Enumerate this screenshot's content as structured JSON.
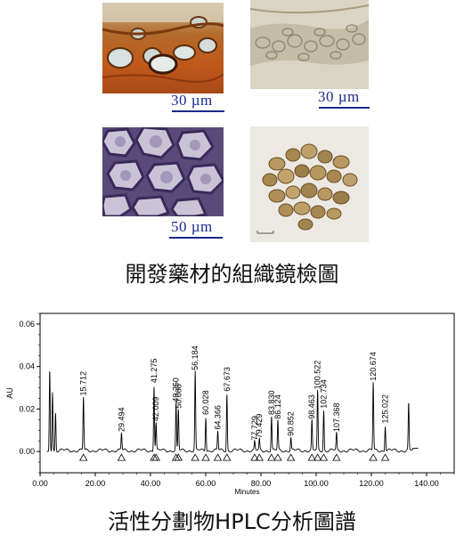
{
  "micrographs": [
    {
      "name": "micrograph-cortex-1",
      "scale": "30 µm"
    },
    {
      "name": "micrograph-cortex-2",
      "scale": "30 µm"
    },
    {
      "name": "micrograph-cells",
      "scale": "50 µm"
    },
    {
      "name": "photo-seeds",
      "scale": ""
    }
  ],
  "caption_top": "開發藥材的組織鏡檢圖",
  "caption_bottom": "活性分劃物HPLC分析圖譜",
  "chart_data": {
    "type": "line",
    "xlabel": "Minutes",
    "ylabel": "AU",
    "xlim": [
      0,
      150
    ],
    "ylim": [
      -0.01,
      0.065
    ],
    "xticks": [
      "0.00",
      "20.00",
      "40.00",
      "60.00",
      "80.00",
      "100.00",
      "120.00",
      "140.00"
    ],
    "xtick_values": [
      0,
      20,
      40,
      60,
      80,
      100,
      120,
      140
    ],
    "yticks": [
      "0.00",
      "0.02",
      "0.04",
      "0.06"
    ],
    "ytick_values": [
      0,
      0.02,
      0.04,
      0.06
    ],
    "series_color": "#000000",
    "peaks": [
      {
        "label": "15.712",
        "x": 15.712,
        "h": 0.025
      },
      {
        "label": "29.494",
        "x": 29.494,
        "h": 0.008
      },
      {
        "label": "41.275",
        "x": 41.275,
        "h": 0.031
      },
      {
        "label": "42.009",
        "x": 42.009,
        "h": 0.013
      },
      {
        "label": "49.250",
        "x": 49.25,
        "h": 0.022
      },
      {
        "label": "50.088",
        "x": 50.088,
        "h": 0.019
      },
      {
        "label": "56.184",
        "x": 56.184,
        "h": 0.037
      },
      {
        "label": "60.028",
        "x": 60.028,
        "h": 0.016
      },
      {
        "label": "64.366",
        "x": 64.366,
        "h": 0.009
      },
      {
        "label": "67.673",
        "x": 67.673,
        "h": 0.027
      },
      {
        "label": "77.729",
        "x": 77.729,
        "h": 0.004
      },
      {
        "label": "79.429",
        "x": 79.429,
        "h": 0.005
      },
      {
        "label": "83.830",
        "x": 83.83,
        "h": 0.016
      },
      {
        "label": "86.124",
        "x": 86.124,
        "h": 0.014
      },
      {
        "label": "90.852",
        "x": 90.852,
        "h": 0.006
      },
      {
        "label": "98.463",
        "x": 98.463,
        "h": 0.014
      },
      {
        "label": "100.522",
        "x": 100.522,
        "h": 0.028
      },
      {
        "label": "102.734",
        "x": 102.734,
        "h": 0.019
      },
      {
        "label": "107.368",
        "x": 107.368,
        "h": 0.008
      },
      {
        "label": "120.674",
        "x": 120.674,
        "h": 0.032
      },
      {
        "label": "125.022",
        "x": 125.022,
        "h": 0.012
      }
    ],
    "extra_peaks": [
      {
        "x": 3.5,
        "h": 0.038
      },
      {
        "x": 4.5,
        "h": 0.028
      },
      {
        "x": 5.6,
        "h": 0.018
      },
      {
        "x": 133.5,
        "h": 0.022
      }
    ]
  }
}
